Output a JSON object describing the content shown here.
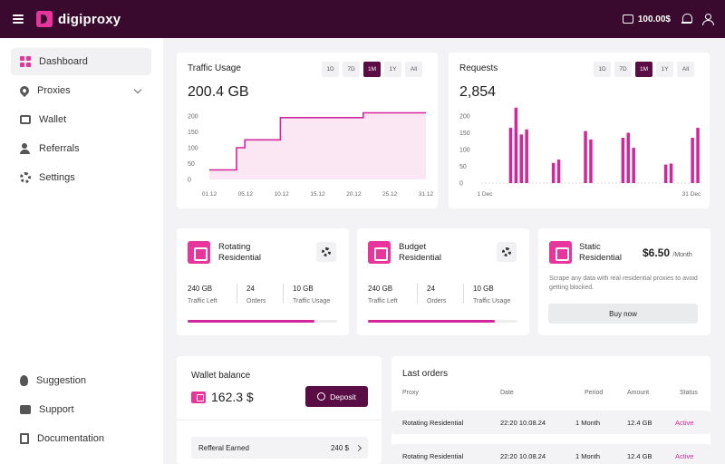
{
  "app": {
    "name": "digiproxy",
    "balance": "100.00$"
  },
  "sidebar": {
    "items": [
      {
        "label": "Dashboard"
      },
      {
        "label": "Proxies"
      },
      {
        "label": "Wallet"
      },
      {
        "label": "Referrals"
      },
      {
        "label": "Settings"
      }
    ],
    "bottom": [
      {
        "label": "Suggestion"
      },
      {
        "label": "Support"
      },
      {
        "label": "Documentation"
      }
    ]
  },
  "traffic": {
    "title": "Traffic Usage",
    "value": "200.4 GB",
    "ranges": [
      "1D",
      "7D",
      "1M",
      "1Y",
      "All"
    ],
    "active_range": "1M"
  },
  "requests": {
    "title": "Requests",
    "value": "2,854",
    "ranges": [
      "1D",
      "7D",
      "1M",
      "1Y",
      "All"
    ],
    "active_range": "1M"
  },
  "chart_data": [
    {
      "type": "area",
      "title": "Traffic Usage",
      "x": [
        "01.12",
        "05.12",
        "10.12",
        "15.12",
        "20.12",
        "25.12",
        "31.12"
      ],
      "y_ticks": [
        0,
        50,
        100,
        150,
        200
      ],
      "ylim": [
        0,
        200
      ],
      "step_points": [
        [
          0,
          30
        ],
        [
          1.15,
          30
        ],
        [
          1.15,
          100
        ],
        [
          1.5,
          100
        ],
        [
          1.5,
          125
        ],
        [
          3,
          125
        ],
        [
          3,
          195
        ],
        [
          6.5,
          195
        ],
        [
          6.5,
          210
        ],
        [
          9.15,
          210
        ]
      ],
      "color": "#d0279a"
    },
    {
      "type": "bar",
      "title": "Requests",
      "x_labels": [
        "1 Dec",
        "31 Dec"
      ],
      "y_ticks": [
        0,
        50,
        100,
        150,
        200
      ],
      "ylim": [
        0,
        200
      ],
      "values": [
        0,
        0,
        0,
        0,
        0,
        165,
        225,
        145,
        160,
        0,
        0,
        0,
        0,
        60,
        70,
        0,
        0,
        0,
        0,
        155,
        130,
        0,
        0,
        0,
        0,
        0,
        135,
        150,
        105,
        0,
        0,
        0,
        0,
        0,
        55,
        58,
        0,
        0,
        0,
        135,
        165
      ],
      "color": "#d0279a"
    }
  ],
  "plans": [
    {
      "name": "Rotating\nResidential",
      "stats": [
        {
          "value": "240 GB",
          "label": "Traffic Left"
        },
        {
          "value": "24",
          "label": "Orders"
        },
        {
          "value": "10 GB",
          "label": "Traffic Usage"
        }
      ],
      "progress": 0.85
    },
    {
      "name": "Budget\nResidential",
      "stats": [
        {
          "value": "240 GB",
          "label": "Traffic Left"
        },
        {
          "value": "24",
          "label": "Orders"
        },
        {
          "value": "10 GB",
          "label": "Traffic Usage"
        }
      ],
      "progress": 0.85
    }
  ],
  "static_plan": {
    "name": "Static\nResidential",
    "price": "$6.50",
    "period": "/Month",
    "description": "Scrape any data with real residential proxies to avoid getting blocked.",
    "button": "Buy now"
  },
  "wallet": {
    "title": "Wallet balance",
    "balance": "162.3 $",
    "deposit_label": "Deposit",
    "referral_label": "Refferal Earned",
    "referral_amount": "240 $"
  },
  "orders": {
    "title": "Last orders",
    "columns": [
      "Proxy",
      "Date",
      "Period",
      "Amount",
      "Status"
    ],
    "rows": [
      {
        "proxy": "Rotating Residential",
        "date": "22:20 10.08.24",
        "period": "1 Month",
        "amount": "12.4 GB",
        "status": "Active"
      },
      {
        "proxy": "Rotating Residential",
        "date": "22:20 10.08.24",
        "period": "1 Month",
        "amount": "12.4 GB",
        "status": "Active"
      }
    ]
  }
}
